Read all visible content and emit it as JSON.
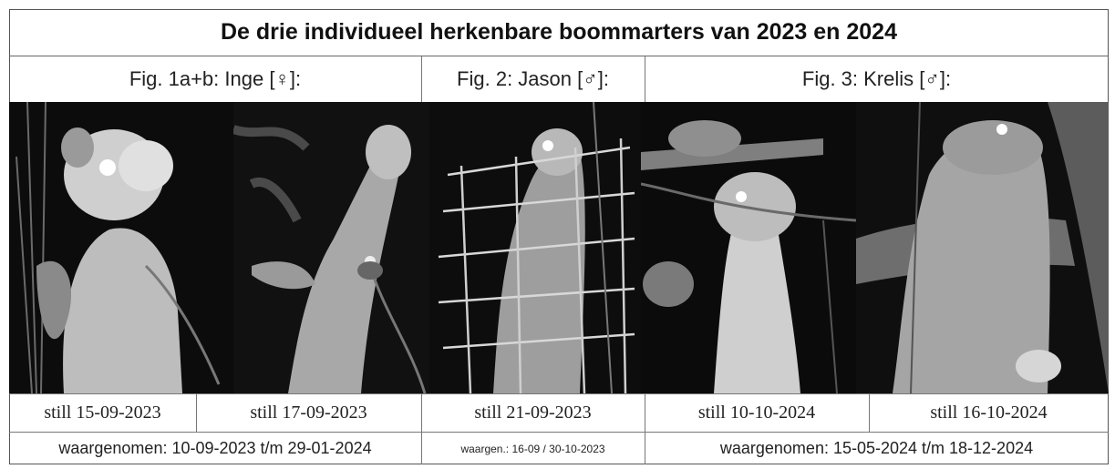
{
  "title": "De drie individueel herkenbare boommarters van 2023 en 2024",
  "headers": [
    {
      "label": "Fig. 1a+b: Inge [♀]:"
    },
    {
      "label": "Fig. 2: Jason [♂]:"
    },
    {
      "label": "Fig. 3: Krelis [♂]:"
    }
  ],
  "stills": [
    {
      "label": "still 15-09-2023"
    },
    {
      "label": "still 17-09-2023"
    },
    {
      "label": "still 21-09-2023"
    },
    {
      "label": "still 10-10-2024"
    },
    {
      "label": "still 16-10-2024"
    }
  ],
  "observations": [
    {
      "label": "waargenomen: 10-09-2023 t/m 29-01-2024"
    },
    {
      "label": "waargen.: 16-09 / 30-10-2023"
    },
    {
      "label": "waargenomen: 15-05-2024 t/m 18-12-2024"
    }
  ]
}
